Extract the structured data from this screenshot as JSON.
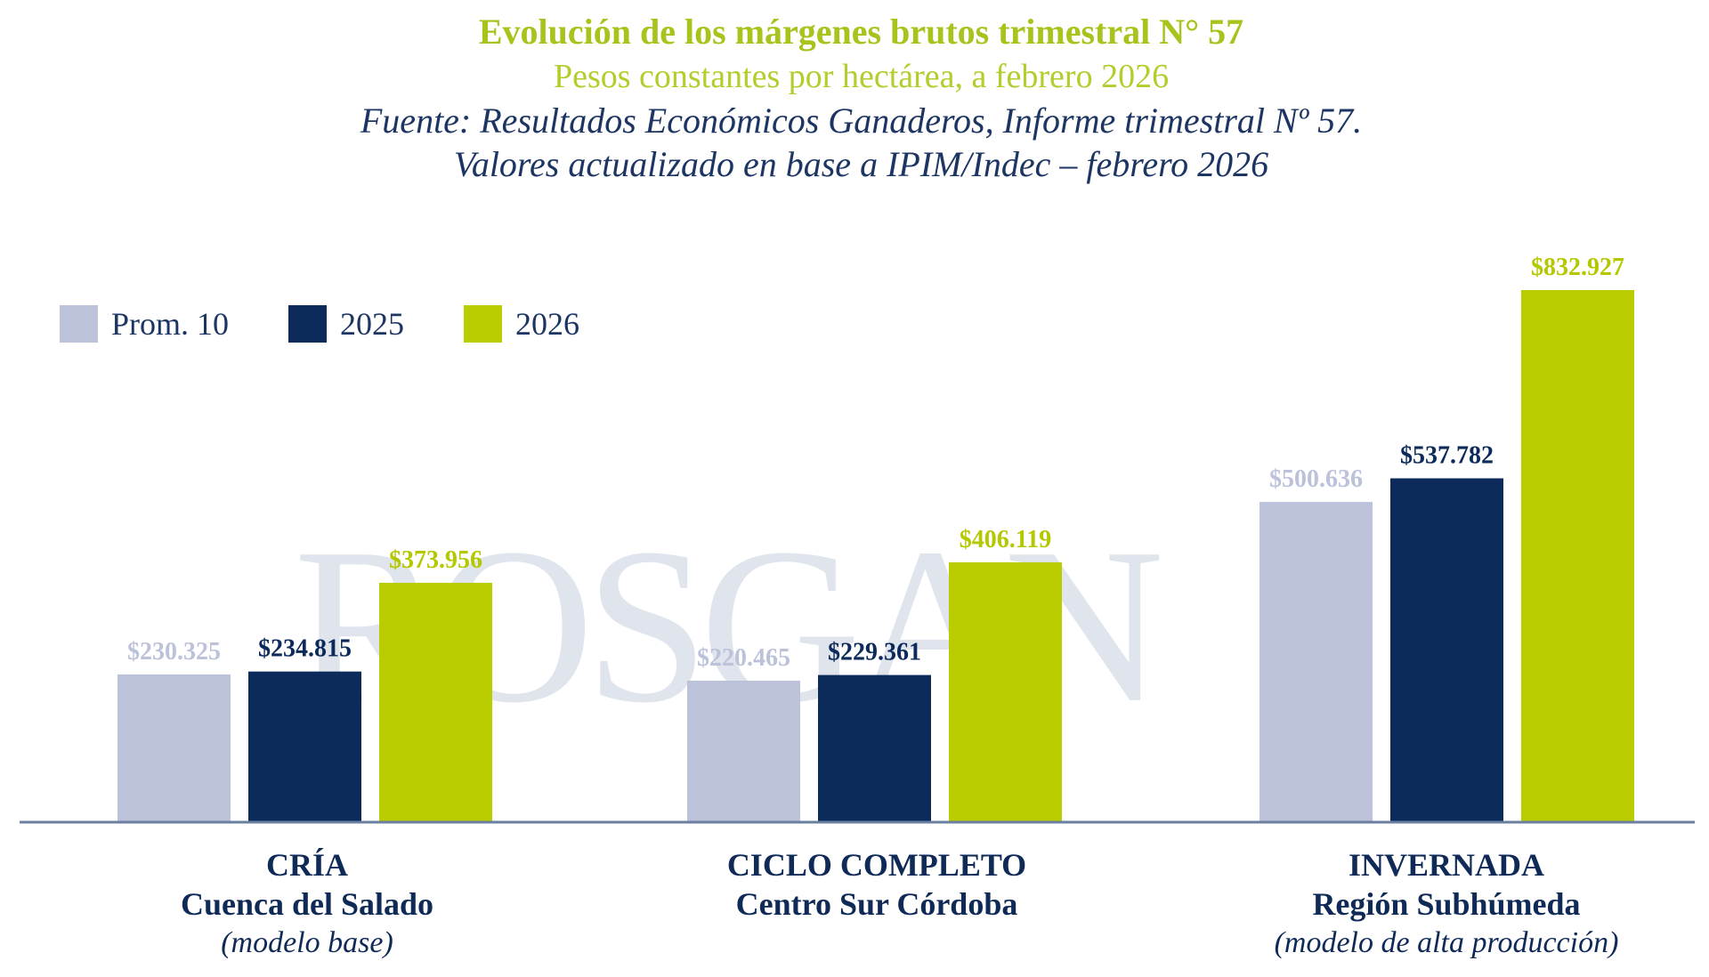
{
  "header": {
    "title": "Evolución de los márgenes brutos trimestral N° 57",
    "subtitle": "Pesos constantes por hectárea, a febrero 2026",
    "source_line1": "Fuente: Resultados Económicos Ganaderos, Informe trimestral Nº 57.",
    "source_line2": "Valores actualizado en base a IPIM/Indec – febrero 2026"
  },
  "watermark": "ROSGAN",
  "legend": [
    {
      "label": "Prom. 10",
      "color": "#bcc2da"
    },
    {
      "label": "2025",
      "color": "#0d2b5a"
    },
    {
      "label": "2026",
      "color": "#b8cc00"
    }
  ],
  "categories": [
    {
      "line1": "CRÍA",
      "line2": "Cuenca del Salado",
      "line3": "(modelo base)"
    },
    {
      "line1": "CICLO COMPLETO",
      "line2": "Centro Sur Córdoba",
      "line3": ""
    },
    {
      "line1": "INVERNADA",
      "line2": "Región Subhúmeda",
      "line3": "(modelo de alta producción)"
    }
  ],
  "chart_data": {
    "type": "bar",
    "title": "Evolución de los márgenes brutos trimestral N° 57",
    "subtitle": "Pesos constantes por hectárea, a febrero 2026",
    "categories": [
      "CRÍA Cuenca del Salado (modelo base)",
      "CICLO COMPLETO Centro Sur Córdoba",
      "INVERNADA Región Subhúmeda (modelo de alta producción)"
    ],
    "series": [
      {
        "name": "Prom. 10",
        "color": "#bcc2da",
        "label_color": "#bcc2da",
        "values": [
          230325,
          220465,
          500636
        ],
        "labels": [
          "$230.325",
          "$220.465",
          "$500.636"
        ]
      },
      {
        "name": "2025",
        "color": "#0d2b5a",
        "label_color": "#0d2b5a",
        "values": [
          234815,
          229361,
          537782
        ],
        "labels": [
          "$234.815",
          "$229.361",
          "$537.782"
        ]
      },
      {
        "name": "2026",
        "color": "#b8cc00",
        "label_color": "#b4c800",
        "values": [
          373956,
          406119,
          832927
        ],
        "labels": [
          "$373.956",
          "$406.119",
          "$832.927"
        ]
      }
    ],
    "xlabel": "",
    "ylabel": "",
    "ylim": [
      0,
      832927
    ],
    "grid": false,
    "legend_position": "top-left",
    "axis_color": "#6b7fa0"
  }
}
